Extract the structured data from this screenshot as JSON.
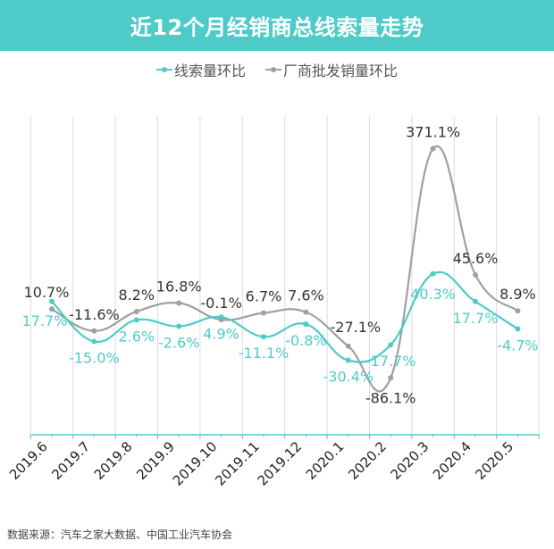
{
  "chart_data": {
    "type": "line",
    "title": "近12个月经销商总线索量走势",
    "categories": [
      "2019.6",
      "2019.7",
      "2019.8",
      "2019.9",
      "2019.10",
      "2019.11",
      "2019.12",
      "2020.1",
      "2020.2",
      "2020.3",
      "2020.4",
      "2020.5"
    ],
    "series": [
      {
        "name": "线索量环比",
        "color": "#4ecbc8",
        "values": [
          17.7,
          -15.0,
          2.6,
          -2.6,
          4.9,
          -11.1,
          -0.8,
          -30.4,
          -17.7,
          40.3,
          17.7,
          -4.7
        ],
        "labels": [
          "17.7%",
          "-15.0%",
          "2.6%",
          "-2.6%",
          "4.9%",
          "-11.1%",
          "-0.8%",
          "-30.4%",
          "-17.7%",
          "40.3%",
          "17.7%",
          "-4.7%"
        ]
      },
      {
        "name": "厂商批发销量环比",
        "color": "#a0a0a0",
        "values": [
          10.7,
          -11.6,
          8.2,
          16.8,
          -0.1,
          6.7,
          7.6,
          -27.1,
          -86.1,
          371.1,
          45.6,
          8.9
        ],
        "labels": [
          "10.7%",
          "-11.6%",
          "8.2%",
          "16.8%",
          "-0.1%",
          "6.7%",
          "7.6%",
          "-27.1%",
          "-86.1%",
          "371.1%",
          "45.6%",
          "8.9%"
        ]
      }
    ],
    "unit": "%",
    "grid": "vertical",
    "legend": "top-center",
    "smooth": true
  },
  "source": "数据来源：汽车之家大数据、中国工业汽车协会"
}
